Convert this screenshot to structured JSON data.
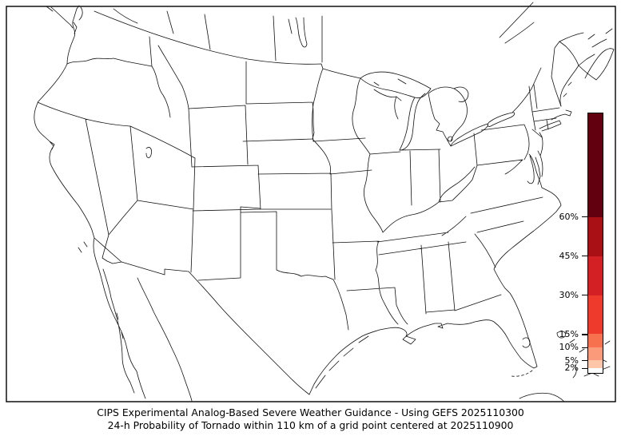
{
  "figure": {
    "caption_line1": "CIPS Experimental Analog-Based Severe Weather Guidance - Using GEFS 2025110300",
    "caption_line2": "24-h Probability of Tornado within 110 km of a grid point centered at 2025110900"
  },
  "map": {
    "extent": "Continental United States with portions of Canada, Mexico, Gulf of Mexico and western Atlantic",
    "filled_probability_areas": []
  },
  "colorbar": {
    "unit": "%",
    "min": 0,
    "max": 100,
    "ticks": [
      {
        "label": "60%",
        "value": 60
      },
      {
        "label": "45%",
        "value": 45
      },
      {
        "label": "30%",
        "value": 30
      },
      {
        "label": "15%",
        "value": 15
      },
      {
        "label": "10%",
        "value": 10
      },
      {
        "label": "5%",
        "value": 5
      },
      {
        "label": "2%",
        "value": 2
      }
    ],
    "segments": [
      {
        "from": 60,
        "to": 100,
        "color": "#62000f"
      },
      {
        "from": 45,
        "to": 60,
        "color": "#a81016"
      },
      {
        "from": 30,
        "to": 45,
        "color": "#d22025"
      },
      {
        "from": 15,
        "to": 30,
        "color": "#ee3a2c"
      },
      {
        "from": 10,
        "to": 15,
        "color": "#f7714f"
      },
      {
        "from": 5,
        "to": 10,
        "color": "#fb9a7b"
      },
      {
        "from": 2,
        "to": 5,
        "color": "#fdc6a8"
      },
      {
        "from": 0,
        "to": 2,
        "color": "#ffffff"
      }
    ]
  }
}
